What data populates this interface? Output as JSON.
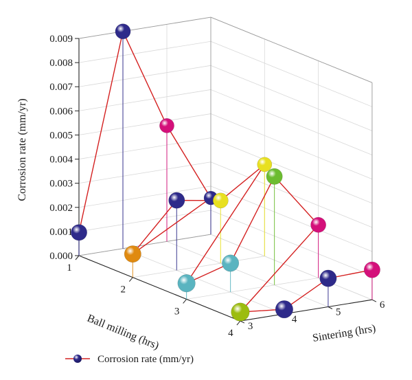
{
  "chart_data": {
    "type": "scatter3d",
    "title": "",
    "x_axis": {
      "label": "Ball milling (hrs)",
      "ticks": [
        "1",
        "2",
        "3",
        "4"
      ],
      "range": [
        1,
        4
      ]
    },
    "y_axis": {
      "label": "Sintering (hrs)",
      "ticks": [
        "3",
        "4",
        "5",
        "6"
      ],
      "range": [
        3,
        6
      ]
    },
    "z_axis": {
      "label": "Corrosion rate (mm/yr)",
      "ticks": [
        "0.000",
        "0.001",
        "0.002",
        "0.003",
        "0.004",
        "0.005",
        "0.006",
        "0.007",
        "0.008",
        "0.009"
      ],
      "range": [
        0,
        0.009
      ]
    },
    "legend": {
      "position": "bottom-left",
      "label": "Corrosion rate (mm/yr)"
    },
    "grid": true,
    "series": [
      {
        "name": "Corrosion rate (mm/yr)",
        "line_color": "#d42020",
        "points": [
          {
            "x": 1,
            "y": 3,
            "z": 0.00096,
            "color": "#2e2a8a"
          },
          {
            "x": 1,
            "y": 4,
            "z": 0.009,
            "color": "#2e2a8a"
          },
          {
            "x": 1,
            "y": 5,
            "z": 0.0048,
            "color": "#d4107a"
          },
          {
            "x": 1,
            "y": 6,
            "z": 0.00151,
            "color": "#2e2a8a"
          },
          {
            "x": 2,
            "y": 3,
            "z": 0.00097,
            "color": "#e08a10"
          },
          {
            "x": 2,
            "y": 4,
            "z": 0.0029,
            "color": "#2e2a8a"
          },
          {
            "x": 2,
            "y": 5,
            "z": 0.0026,
            "color": "#e8e020"
          },
          {
            "x": 2,
            "y": 6,
            "z": 0.0038,
            "color": "#e8e020"
          },
          {
            "x": 3,
            "y": 3,
            "z": 0.00066,
            "color": "#5ab4c0"
          },
          {
            "x": 3,
            "y": 4,
            "z": 0.0012,
            "color": "#5ab4c0"
          },
          {
            "x": 3,
            "y": 5,
            "z": 0.0045,
            "color": "#6cbc30"
          },
          {
            "x": 3,
            "y": 6,
            "z": 0.0022,
            "color": "#d4107a"
          },
          {
            "x": 4,
            "y": 3,
            "z": 0.00037,
            "color": "#9cbc10"
          },
          {
            "x": 4,
            "y": 4,
            "z": 0.00019,
            "color": "#2e2a8a"
          },
          {
            "x": 4,
            "y": 5,
            "z": 0.00118,
            "color": "#2e2a8a"
          },
          {
            "x": 4,
            "y": 6,
            "z": 0.00124,
            "color": "#d4107a"
          }
        ]
      }
    ]
  }
}
